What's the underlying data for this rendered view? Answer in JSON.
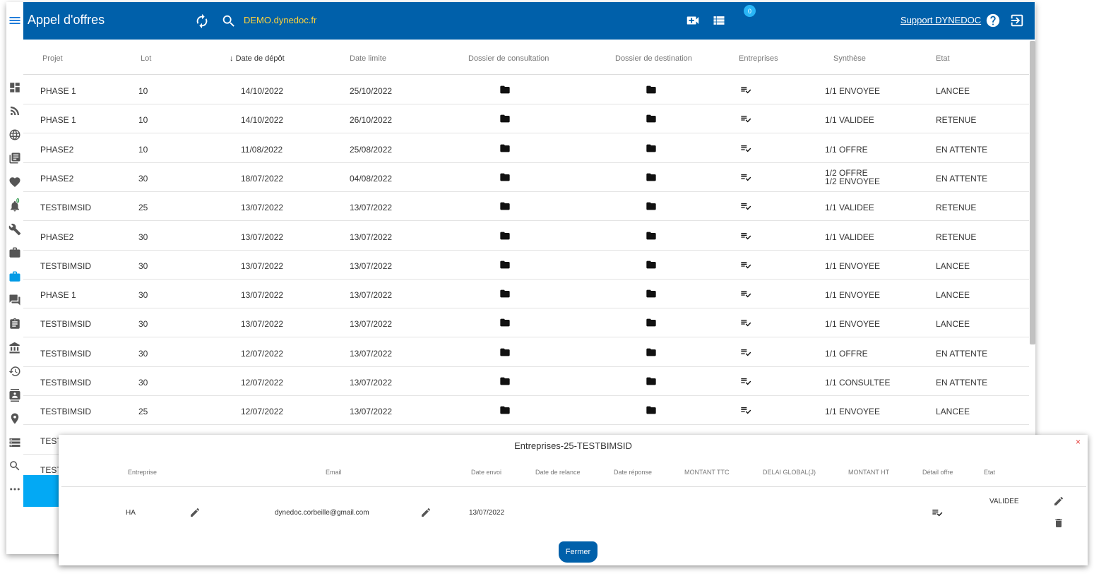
{
  "header": {
    "title": "Appel d'offres",
    "domain": "DEMO.dynedoc.fr",
    "notification_count": "0",
    "support_label": "Support DYNEDOC"
  },
  "table": {
    "columns": [
      "Projet",
      "Lot",
      "Date de dépôt",
      "Date limite",
      "Dossier de consultation",
      "Dossier de destination",
      "Entreprises",
      "Synthèse",
      "Etat"
    ],
    "sorted_column": "Date de dépôt",
    "rows": [
      {
        "projet": "PHASE 1",
        "lot": "10",
        "depot": "14/10/2022",
        "limite": "25/10/2022",
        "synthese": [
          "1/1 ENVOYEE"
        ],
        "etat": "LANCEE"
      },
      {
        "projet": "PHASE 1",
        "lot": "10",
        "depot": "14/10/2022",
        "limite": "26/10/2022",
        "synthese": [
          "1/1 VALIDEE"
        ],
        "etat": "RETENUE"
      },
      {
        "projet": "PHASE2",
        "lot": "10",
        "depot": "11/08/2022",
        "limite": "25/08/2022",
        "synthese": [
          "1/1 OFFRE"
        ],
        "etat": "EN ATTENTE"
      },
      {
        "projet": "PHASE2",
        "lot": "30",
        "depot": "18/07/2022",
        "limite": "04/08/2022",
        "synthese": [
          "1/2 OFFRE",
          "1/2 ENVOYEE"
        ],
        "etat": "EN ATTENTE"
      },
      {
        "projet": "TESTBIMSID",
        "lot": "25",
        "depot": "13/07/2022",
        "limite": "13/07/2022",
        "synthese": [
          "1/1 VALIDEE"
        ],
        "etat": "RETENUE"
      },
      {
        "projet": "PHASE2",
        "lot": "30",
        "depot": "13/07/2022",
        "limite": "13/07/2022",
        "synthese": [
          "1/1 VALIDEE"
        ],
        "etat": "RETENUE"
      },
      {
        "projet": "TESTBIMSID",
        "lot": "30",
        "depot": "13/07/2022",
        "limite": "13/07/2022",
        "synthese": [
          "1/1 ENVOYEE"
        ],
        "etat": "LANCEE"
      },
      {
        "projet": "PHASE 1",
        "lot": "30",
        "depot": "13/07/2022",
        "limite": "13/07/2022",
        "synthese": [
          "1/1 ENVOYEE"
        ],
        "etat": "LANCEE"
      },
      {
        "projet": "TESTBIMSID",
        "lot": "30",
        "depot": "13/07/2022",
        "limite": "13/07/2022",
        "synthese": [
          "1/1 ENVOYEE"
        ],
        "etat": "LANCEE"
      },
      {
        "projet": "TESTBIMSID",
        "lot": "30",
        "depot": "12/07/2022",
        "limite": "13/07/2022",
        "synthese": [
          "1/1 OFFRE"
        ],
        "etat": "EN ATTENTE"
      },
      {
        "projet": "TESTBIMSID",
        "lot": "30",
        "depot": "12/07/2022",
        "limite": "13/07/2022",
        "synthese": [
          "1/1 CONSULTEE"
        ],
        "etat": "EN ATTENTE"
      },
      {
        "projet": "TESTBIMSID",
        "lot": "25",
        "depot": "12/07/2022",
        "limite": "13/07/2022",
        "synthese": [
          "1/1 ENVOYEE"
        ],
        "etat": "LANCEE"
      },
      {
        "projet": "TEST",
        "lot": "",
        "depot": "",
        "limite": "",
        "synthese": [],
        "etat": ""
      },
      {
        "projet": "TEST",
        "lot": "",
        "depot": "",
        "limite": "",
        "synthese": [],
        "etat": ""
      }
    ]
  },
  "sidebar": {
    "icons": [
      "dashboard-icon",
      "rss-icon",
      "globe-icon",
      "library-icon",
      "heart-icon",
      "bell-icon",
      "wrench-icon",
      "briefcase-icon",
      "briefcase-active-icon",
      "chat-icon",
      "clipboard-icon",
      "bank-icon",
      "history-icon",
      "contact-icon",
      "location-icon",
      "storage-icon",
      "search-icon",
      "more-icon"
    ],
    "bell_badge": "0"
  },
  "dialog": {
    "title": "Entreprises-25-TESTBIMSID",
    "close_label": "×",
    "columns": [
      "Entreprise",
      "Email",
      "Date envoi",
      "Date de relance",
      "Date réponse",
      "MONTANT TTC",
      "DELAI GLOBAL(J)",
      "MONTANT HT",
      "Détail offre",
      "Etat"
    ],
    "row": {
      "entreprise": "HA",
      "email": "dynedoc.corbeille@gmail.com",
      "date_envoi": "13/07/2022",
      "etat": "VALIDEE"
    },
    "close_button": "Fermer"
  },
  "colors": {
    "header_bg": "#0060aa",
    "accent": "#03a9f4",
    "domain_text": "#ffd43b"
  }
}
